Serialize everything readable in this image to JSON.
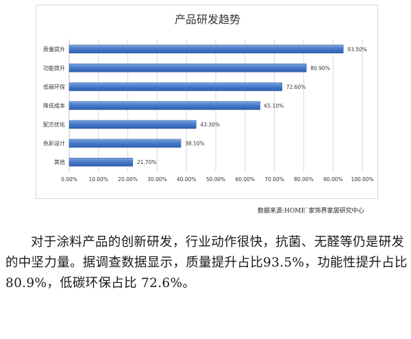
{
  "chart_data": {
    "type": "bar",
    "orientation": "horizontal",
    "title": "产品研发趋势",
    "categories": [
      "质量提升",
      "功能提升",
      "低碳环保",
      "降低成本",
      "配方优化",
      "色彩设计",
      "其他"
    ],
    "values": [
      93.5,
      80.9,
      72.6,
      65.1,
      43.3,
      38.1,
      21.7
    ],
    "value_labels": [
      "93.50%",
      "80.90%",
      "72.60%",
      "65.10%",
      "43.30%",
      "38.10%",
      "21.70%"
    ],
    "xlim": [
      0,
      100
    ],
    "xticks": [
      "0.00%",
      "10.00%",
      "20.00%",
      "30.00%",
      "40.00%",
      "50.00%",
      "60.00%",
      "70.00%",
      "80.00%",
      "90.00%",
      "100.00%"
    ],
    "grid": true,
    "bar_color": "#4472c4"
  },
  "source_note": "数据来源:HOME`家饰界家居研究中心",
  "body_text": "对于涂料产品的创新研发，行业动作很快，抗菌、无醛等仍是研发的中坚力量。据调查数据显示，质量提升占比93.5%，功能性提升占比 80.9%，低碳环保占比 72.6%。"
}
